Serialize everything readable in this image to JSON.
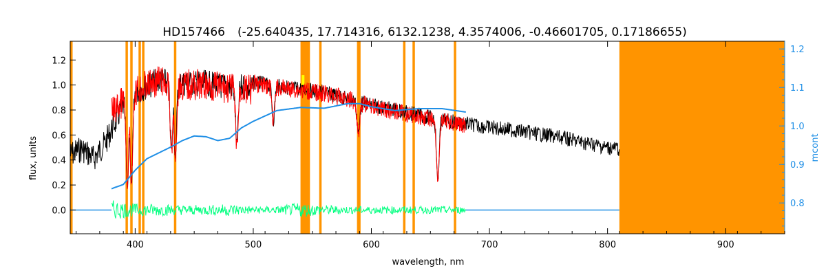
{
  "chart_data": {
    "type": "line",
    "title_star": "HD157466",
    "title_params": "(-25.640435, 17.714316, 6132.1238, 4.3574006, -0.46601705, 0.17186655)",
    "xlabel": "wavelength, nm",
    "ylabel": "flux, units",
    "y2label": "mcont",
    "xlim": [
      345,
      950
    ],
    "ylim": [
      -0.19,
      1.35
    ],
    "y2lim": [
      0.72,
      1.22
    ],
    "xticks": [
      400,
      500,
      600,
      700,
      800,
      900
    ],
    "yticks": [
      0.0,
      0.2,
      0.4,
      0.6,
      0.8,
      1.0,
      1.2
    ],
    "y2ticks": [
      0.8,
      0.9,
      1.0,
      1.1,
      1.2
    ],
    "colors": {
      "observed": "#000000",
      "model": "#ff0000",
      "continuum": "#1f8fe6",
      "residual": "#00ff7f",
      "mask": "#ff9400",
      "highlight": "#ffff00"
    },
    "masked_lines_nm": [
      345,
      393,
      397,
      404,
      407,
      434,
      557,
      589,
      590,
      628,
      636,
      671
    ],
    "masked_bands_nm": [
      [
        540,
        548
      ],
      [
        810,
        950
      ]
    ],
    "strong_absorption_nm": [
      {
        "x": 393.4,
        "y": 0.12
      },
      {
        "x": 396.8,
        "y": 0.15
      },
      {
        "x": 430.8,
        "y": 0.42
      },
      {
        "x": 434.0,
        "y": 0.38
      },
      {
        "x": 486.1,
        "y": 0.48
      },
      {
        "x": 517.0,
        "y": 0.68
      },
      {
        "x": 589.0,
        "y": 0.68
      },
      {
        "x": 656.3,
        "y": 0.25
      }
    ],
    "series": [
      {
        "key": "observed",
        "x": [
          345,
          355,
          365,
          375,
          380,
          390,
          400,
          410,
          420,
          430,
          440,
          450,
          460,
          470,
          480,
          500,
          520,
          540,
          560,
          580,
          600,
          620,
          640,
          660,
          680,
          700,
          720,
          740,
          760,
          780,
          800,
          810
        ],
        "y": [
          0.55,
          0.6,
          0.52,
          0.65,
          0.75,
          0.95,
          1.05,
          1.1,
          1.15,
          1.12,
          1.12,
          1.12,
          1.12,
          1.1,
          1.1,
          1.08,
          1.05,
          1.03,
          1.0,
          0.95,
          0.9,
          0.86,
          0.82,
          0.78,
          0.75,
          0.72,
          0.7,
          0.67,
          0.64,
          0.6,
          0.56,
          0.55
        ]
      },
      {
        "key": "model",
        "x": [
          380,
          390,
          400,
          410,
          420,
          430,
          440,
          450,
          460,
          480,
          500,
          520,
          540,
          560,
          580,
          600,
          620,
          640,
          660,
          680
        ],
        "y": [
          0.9,
          1.0,
          1.08,
          1.12,
          1.16,
          1.12,
          1.12,
          1.13,
          1.12,
          1.1,
          1.08,
          1.05,
          1.03,
          1.0,
          0.96,
          0.9,
          0.86,
          0.82,
          0.78,
          0.75
        ]
      },
      {
        "key": "continuum",
        "axis": "right",
        "x": [
          380,
          390,
          400,
          410,
          420,
          430,
          440,
          450,
          460,
          470,
          480,
          490,
          500,
          510,
          520,
          540,
          560,
          580,
          590,
          600,
          620,
          640,
          660,
          680
        ],
        "y": [
          0.837,
          0.848,
          0.885,
          0.915,
          0.93,
          0.945,
          0.962,
          0.974,
          0.972,
          0.962,
          0.968,
          0.995,
          1.012,
          1.026,
          1.04,
          1.048,
          1.046,
          1.058,
          1.058,
          1.05,
          1.04,
          1.045,
          1.045,
          1.036
        ]
      },
      {
        "key": "residual",
        "x": [
          380,
          400,
          420,
          440,
          460,
          480,
          500,
          520,
          540,
          560,
          580,
          600,
          620,
          640,
          660,
          680
        ],
        "y": [
          0.0,
          0.0,
          0.0,
          0.0,
          0.0,
          0.0,
          0.0,
          0.0,
          0.0,
          0.0,
          0.0,
          0.0,
          0.0,
          0.0,
          0.0,
          0.0
        ],
        "scatter": [
          0.08,
          0.05,
          0.05,
          0.04,
          0.04,
          0.05,
          0.03,
          0.03,
          0.06,
          0.04,
          0.03,
          0.03,
          0.03,
          0.03,
          0.03,
          0.03
        ]
      },
      {
        "key": "residual-tail",
        "x": [
          680,
          810
        ],
        "y": [
          0.0,
          0.0
        ]
      }
    ]
  }
}
